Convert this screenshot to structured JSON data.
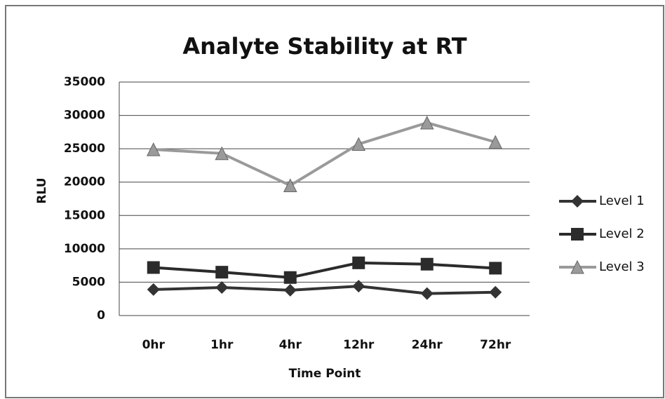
{
  "chart_data": {
    "type": "line",
    "title": "Analyte Stability at RT",
    "x_label": "Time Point",
    "y_label": "RLU",
    "categories": [
      "0hr",
      "1hr",
      "4hr",
      "12hr",
      "24hr",
      "72hr"
    ],
    "series": [
      {
        "name": "Level 1",
        "color": "#333333",
        "marker": "diamond",
        "values": [
          3900,
          4200,
          3800,
          4400,
          3300,
          3500
        ]
      },
      {
        "name": "Level 2",
        "color": "#2b2b2b",
        "marker": "square",
        "values": [
          7200,
          6500,
          5700,
          7900,
          7700,
          7100
        ]
      },
      {
        "name": "Level 3",
        "color": "#9a9a9a",
        "marker": "triangle",
        "values": [
          24900,
          24300,
          19500,
          25700,
          28900,
          26000
        ]
      }
    ],
    "ylim": [
      0,
      35000
    ],
    "yticks": [
      0,
      5000,
      10000,
      15000,
      20000,
      25000,
      30000,
      35000
    ],
    "grid": true,
    "legend": "right"
  }
}
